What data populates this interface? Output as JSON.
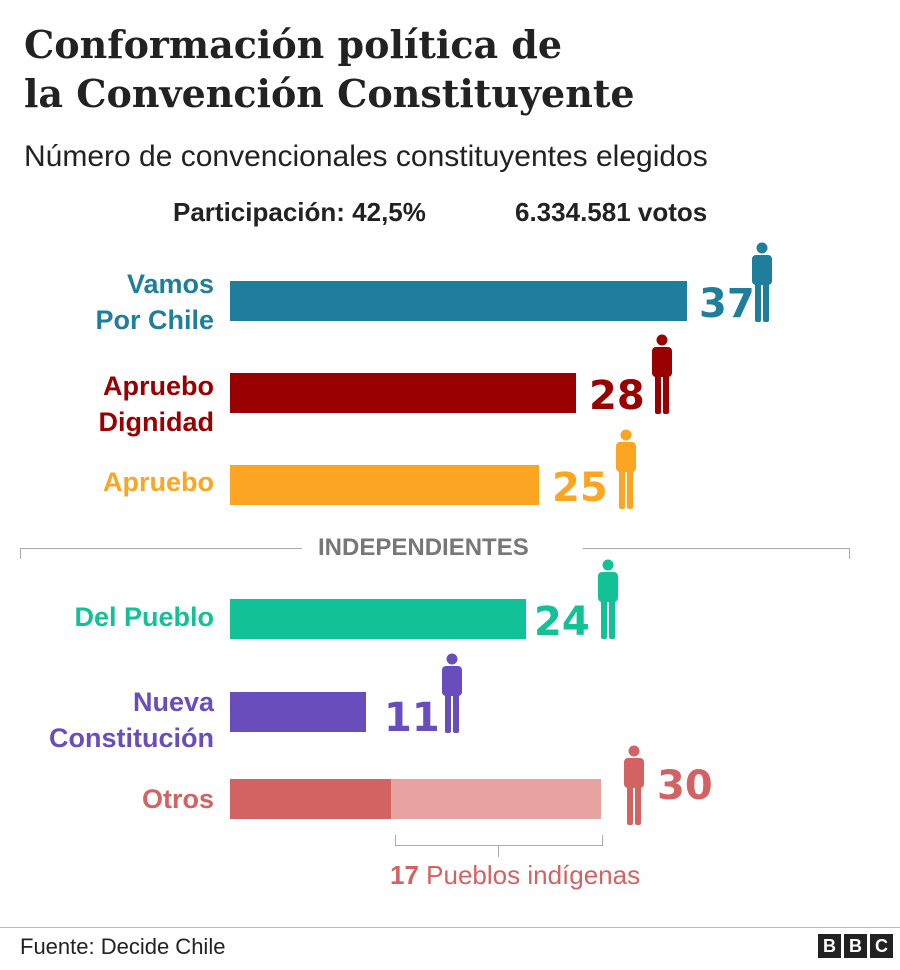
{
  "title": {
    "line1": "Conformación política de",
    "line2": "la Convención Constituyente"
  },
  "subtitle": "Número de convencionales constituyentes elegidos",
  "stats": {
    "participation": "Participación: 42,5%",
    "votes": "6.334.581 votos"
  },
  "chart_data": {
    "type": "bar",
    "orientation": "horizontal",
    "title": "Conformación política de la Convención Constituyente",
    "subtitle": "Número de convencionales constituyentes elegidos",
    "separator_label": "INDEPENDIENTES",
    "categories": [
      "Vamos Por Chile",
      "Apruebo Dignidad",
      "Apruebo",
      "Del Pueblo",
      "Nueva Constitución",
      "Otros"
    ],
    "values": [
      37,
      28,
      25,
      24,
      11,
      30
    ],
    "bars": [
      {
        "label_lines": [
          "Vamos",
          "Por Chile"
        ],
        "value": 37,
        "color": "#1f7e9c"
      },
      {
        "label_lines": [
          "Apruebo",
          "Dignidad"
        ],
        "value": 28,
        "color": "#990000"
      },
      {
        "label_lines": [
          "Apruebo"
        ],
        "value": 25,
        "color": "#fca523"
      },
      {
        "label_lines": [
          "Del Pueblo"
        ],
        "value": 24,
        "color": "#13c197"
      },
      {
        "label_lines": [
          "Nueva",
          "Constitución"
        ],
        "value": 11,
        "color": "#6a4dbd"
      },
      {
        "label_lines": [
          "Otros"
        ],
        "value": 30,
        "color": "#d36363",
        "segments": [
          {
            "name": "Otros",
            "value": 13,
            "color": "#d36363"
          },
          {
            "name": "Pueblos indígenas",
            "value": 17,
            "color": "#e7a2a2"
          }
        ]
      }
    ],
    "annotation": {
      "value": "17",
      "text": "Pueblos indígenas",
      "color": "#d36363"
    }
  },
  "icons": {
    "person": "person-icon",
    "logo": "bbc-logo"
  },
  "footer": {
    "source": "Fuente: Decide Chile",
    "logo_letters": [
      "B",
      "B",
      "C"
    ]
  }
}
